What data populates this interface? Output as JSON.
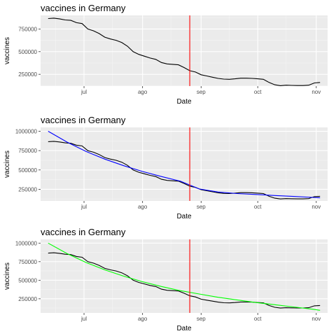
{
  "chart_data": [
    {
      "type": "line",
      "title": "vaccines in Germany",
      "xlabel": "Date",
      "ylabel": "vaccines",
      "x_ticks": [
        "jul",
        "ago",
        "sep",
        "oct",
        "nov"
      ],
      "y_ticks": [
        "250000",
        "500000",
        "750000"
      ],
      "ylim": [
        120000,
        900000
      ],
      "grid": true,
      "vline": {
        "x": "2021-08-26",
        "color": "#ff0000"
      },
      "series": [
        {
          "color": "#000000",
          "x": [
            "2021-06-12",
            "2021-06-15",
            "2021-06-18",
            "2021-06-21",
            "2021-06-24",
            "2021-06-27",
            "2021-06-30",
            "2021-07-03",
            "2021-07-06",
            "2021-07-09",
            "2021-07-12",
            "2021-07-15",
            "2021-07-18",
            "2021-07-21",
            "2021-07-24",
            "2021-07-27",
            "2021-07-30",
            "2021-08-02",
            "2021-08-05",
            "2021-08-08",
            "2021-08-11",
            "2021-08-14",
            "2021-08-17",
            "2021-08-20",
            "2021-08-23",
            "2021-08-26",
            "2021-08-29",
            "2021-09-01",
            "2021-09-04",
            "2021-09-07",
            "2021-09-10",
            "2021-09-13",
            "2021-09-16",
            "2021-09-19",
            "2021-09-22",
            "2021-09-25",
            "2021-09-28",
            "2021-10-01",
            "2021-10-04",
            "2021-10-07",
            "2021-10-10",
            "2021-10-13",
            "2021-10-16",
            "2021-10-19",
            "2021-10-22",
            "2021-10-25",
            "2021-10-28",
            "2021-10-31",
            "2021-11-03"
          ],
          "values": [
            865000,
            870000,
            862000,
            850000,
            845000,
            820000,
            810000,
            750000,
            730000,
            700000,
            660000,
            640000,
            625000,
            600000,
            560000,
            500000,
            470000,
            450000,
            430000,
            415000,
            380000,
            365000,
            360000,
            355000,
            325000,
            290000,
            275000,
            245000,
            232000,
            218000,
            205000,
            197000,
            195000,
            200000,
            207000,
            207000,
            205000,
            200000,
            195000,
            160000,
            135000,
            125000,
            130000,
            128000,
            126000,
            126000,
            130000,
            155000,
            160000
          ]
        }
      ]
    },
    {
      "type": "line",
      "title": "vaccines in Germany",
      "xlabel": "Date",
      "ylabel": "vaccines",
      "x_ticks": [
        "jul",
        "ago",
        "sep",
        "oct",
        "nov"
      ],
      "y_ticks": [
        "250000",
        "500000",
        "750000",
        "1000000"
      ],
      "ylim": [
        100000,
        1050000
      ],
      "grid": true,
      "vline": {
        "x": "2021-08-26",
        "color": "#ff0000"
      },
      "series": [
        {
          "color": "#000000",
          "x": [
            "2021-06-12",
            "2021-06-15",
            "2021-06-18",
            "2021-06-21",
            "2021-06-24",
            "2021-06-27",
            "2021-06-30",
            "2021-07-03",
            "2021-07-06",
            "2021-07-09",
            "2021-07-12",
            "2021-07-15",
            "2021-07-18",
            "2021-07-21",
            "2021-07-24",
            "2021-07-27",
            "2021-07-30",
            "2021-08-02",
            "2021-08-05",
            "2021-08-08",
            "2021-08-11",
            "2021-08-14",
            "2021-08-17",
            "2021-08-20",
            "2021-08-23",
            "2021-08-26",
            "2021-08-29",
            "2021-09-01",
            "2021-09-04",
            "2021-09-07",
            "2021-09-10",
            "2021-09-13",
            "2021-09-16",
            "2021-09-19",
            "2021-09-22",
            "2021-09-25",
            "2021-09-28",
            "2021-10-01",
            "2021-10-04",
            "2021-10-07",
            "2021-10-10",
            "2021-10-13",
            "2021-10-16",
            "2021-10-19",
            "2021-10-22",
            "2021-10-25",
            "2021-10-28",
            "2021-10-31",
            "2021-11-03"
          ],
          "values": [
            865000,
            870000,
            862000,
            850000,
            845000,
            820000,
            810000,
            750000,
            730000,
            700000,
            660000,
            640000,
            625000,
            600000,
            560000,
            500000,
            470000,
            450000,
            430000,
            415000,
            380000,
            365000,
            360000,
            355000,
            325000,
            290000,
            275000,
            245000,
            232000,
            218000,
            205000,
            197000,
            195000,
            200000,
            207000,
            207000,
            205000,
            200000,
            195000,
            160000,
            135000,
            125000,
            130000,
            128000,
            126000,
            126000,
            130000,
            155000,
            160000
          ]
        },
        {
          "color": "#0000ff",
          "x": [
            "2021-06-12",
            "2021-06-22",
            "2021-07-02",
            "2021-07-12",
            "2021-07-22",
            "2021-08-01",
            "2021-08-11",
            "2021-08-21",
            "2021-08-31",
            "2021-09-10",
            "2021-09-20",
            "2021-09-30",
            "2021-10-10",
            "2021-10-20",
            "2021-10-30",
            "2021-11-03"
          ],
          "values": [
            1000000,
            860000,
            740000,
            640000,
            555000,
            480000,
            415000,
            355000,
            255000,
            215000,
            195000,
            183000,
            170000,
            158000,
            145000,
            140000
          ]
        }
      ]
    },
    {
      "type": "line",
      "title": "vaccines in Germany",
      "xlabel": "Date",
      "ylabel": "vaccines",
      "x_ticks": [
        "jul",
        "ago",
        "sep",
        "oct",
        "nov"
      ],
      "y_ticks": [
        "250000",
        "500000",
        "750000",
        "1000000"
      ],
      "ylim": [
        60000,
        1050000
      ],
      "grid": true,
      "vline": {
        "x": "2021-08-26",
        "color": "#ff0000"
      },
      "series": [
        {
          "color": "#000000",
          "x": [
            "2021-06-12",
            "2021-06-15",
            "2021-06-18",
            "2021-06-21",
            "2021-06-24",
            "2021-06-27",
            "2021-06-30",
            "2021-07-03",
            "2021-07-06",
            "2021-07-09",
            "2021-07-12",
            "2021-07-15",
            "2021-07-18",
            "2021-07-21",
            "2021-07-24",
            "2021-07-27",
            "2021-07-30",
            "2021-08-02",
            "2021-08-05",
            "2021-08-08",
            "2021-08-11",
            "2021-08-14",
            "2021-08-17",
            "2021-08-20",
            "2021-08-23",
            "2021-08-26",
            "2021-08-29",
            "2021-09-01",
            "2021-09-04",
            "2021-09-07",
            "2021-09-10",
            "2021-09-13",
            "2021-09-16",
            "2021-09-19",
            "2021-09-22",
            "2021-09-25",
            "2021-09-28",
            "2021-10-01",
            "2021-10-04",
            "2021-10-07",
            "2021-10-10",
            "2021-10-13",
            "2021-10-16",
            "2021-10-19",
            "2021-10-22",
            "2021-10-25",
            "2021-10-28",
            "2021-10-31",
            "2021-11-03"
          ],
          "values": [
            865000,
            870000,
            862000,
            850000,
            845000,
            820000,
            810000,
            750000,
            730000,
            700000,
            660000,
            640000,
            625000,
            600000,
            560000,
            500000,
            470000,
            450000,
            430000,
            415000,
            380000,
            365000,
            360000,
            355000,
            325000,
            290000,
            275000,
            245000,
            232000,
            218000,
            205000,
            197000,
            195000,
            200000,
            207000,
            207000,
            205000,
            200000,
            195000,
            160000,
            135000,
            125000,
            130000,
            128000,
            126000,
            126000,
            130000,
            155000,
            160000
          ]
        },
        {
          "color": "#00ff00",
          "x": [
            "2021-06-12",
            "2021-06-22",
            "2021-07-02",
            "2021-07-12",
            "2021-07-22",
            "2021-08-01",
            "2021-08-11",
            "2021-08-21",
            "2021-08-31",
            "2021-09-10",
            "2021-09-20",
            "2021-09-30",
            "2021-10-10",
            "2021-10-20",
            "2021-10-30",
            "2021-11-03"
          ],
          "values": [
            1000000,
            860000,
            740000,
            640000,
            555000,
            480000,
            415000,
            360000,
            315000,
            270000,
            235000,
            200000,
            170000,
            140000,
            110000,
            95000
          ]
        }
      ]
    }
  ]
}
